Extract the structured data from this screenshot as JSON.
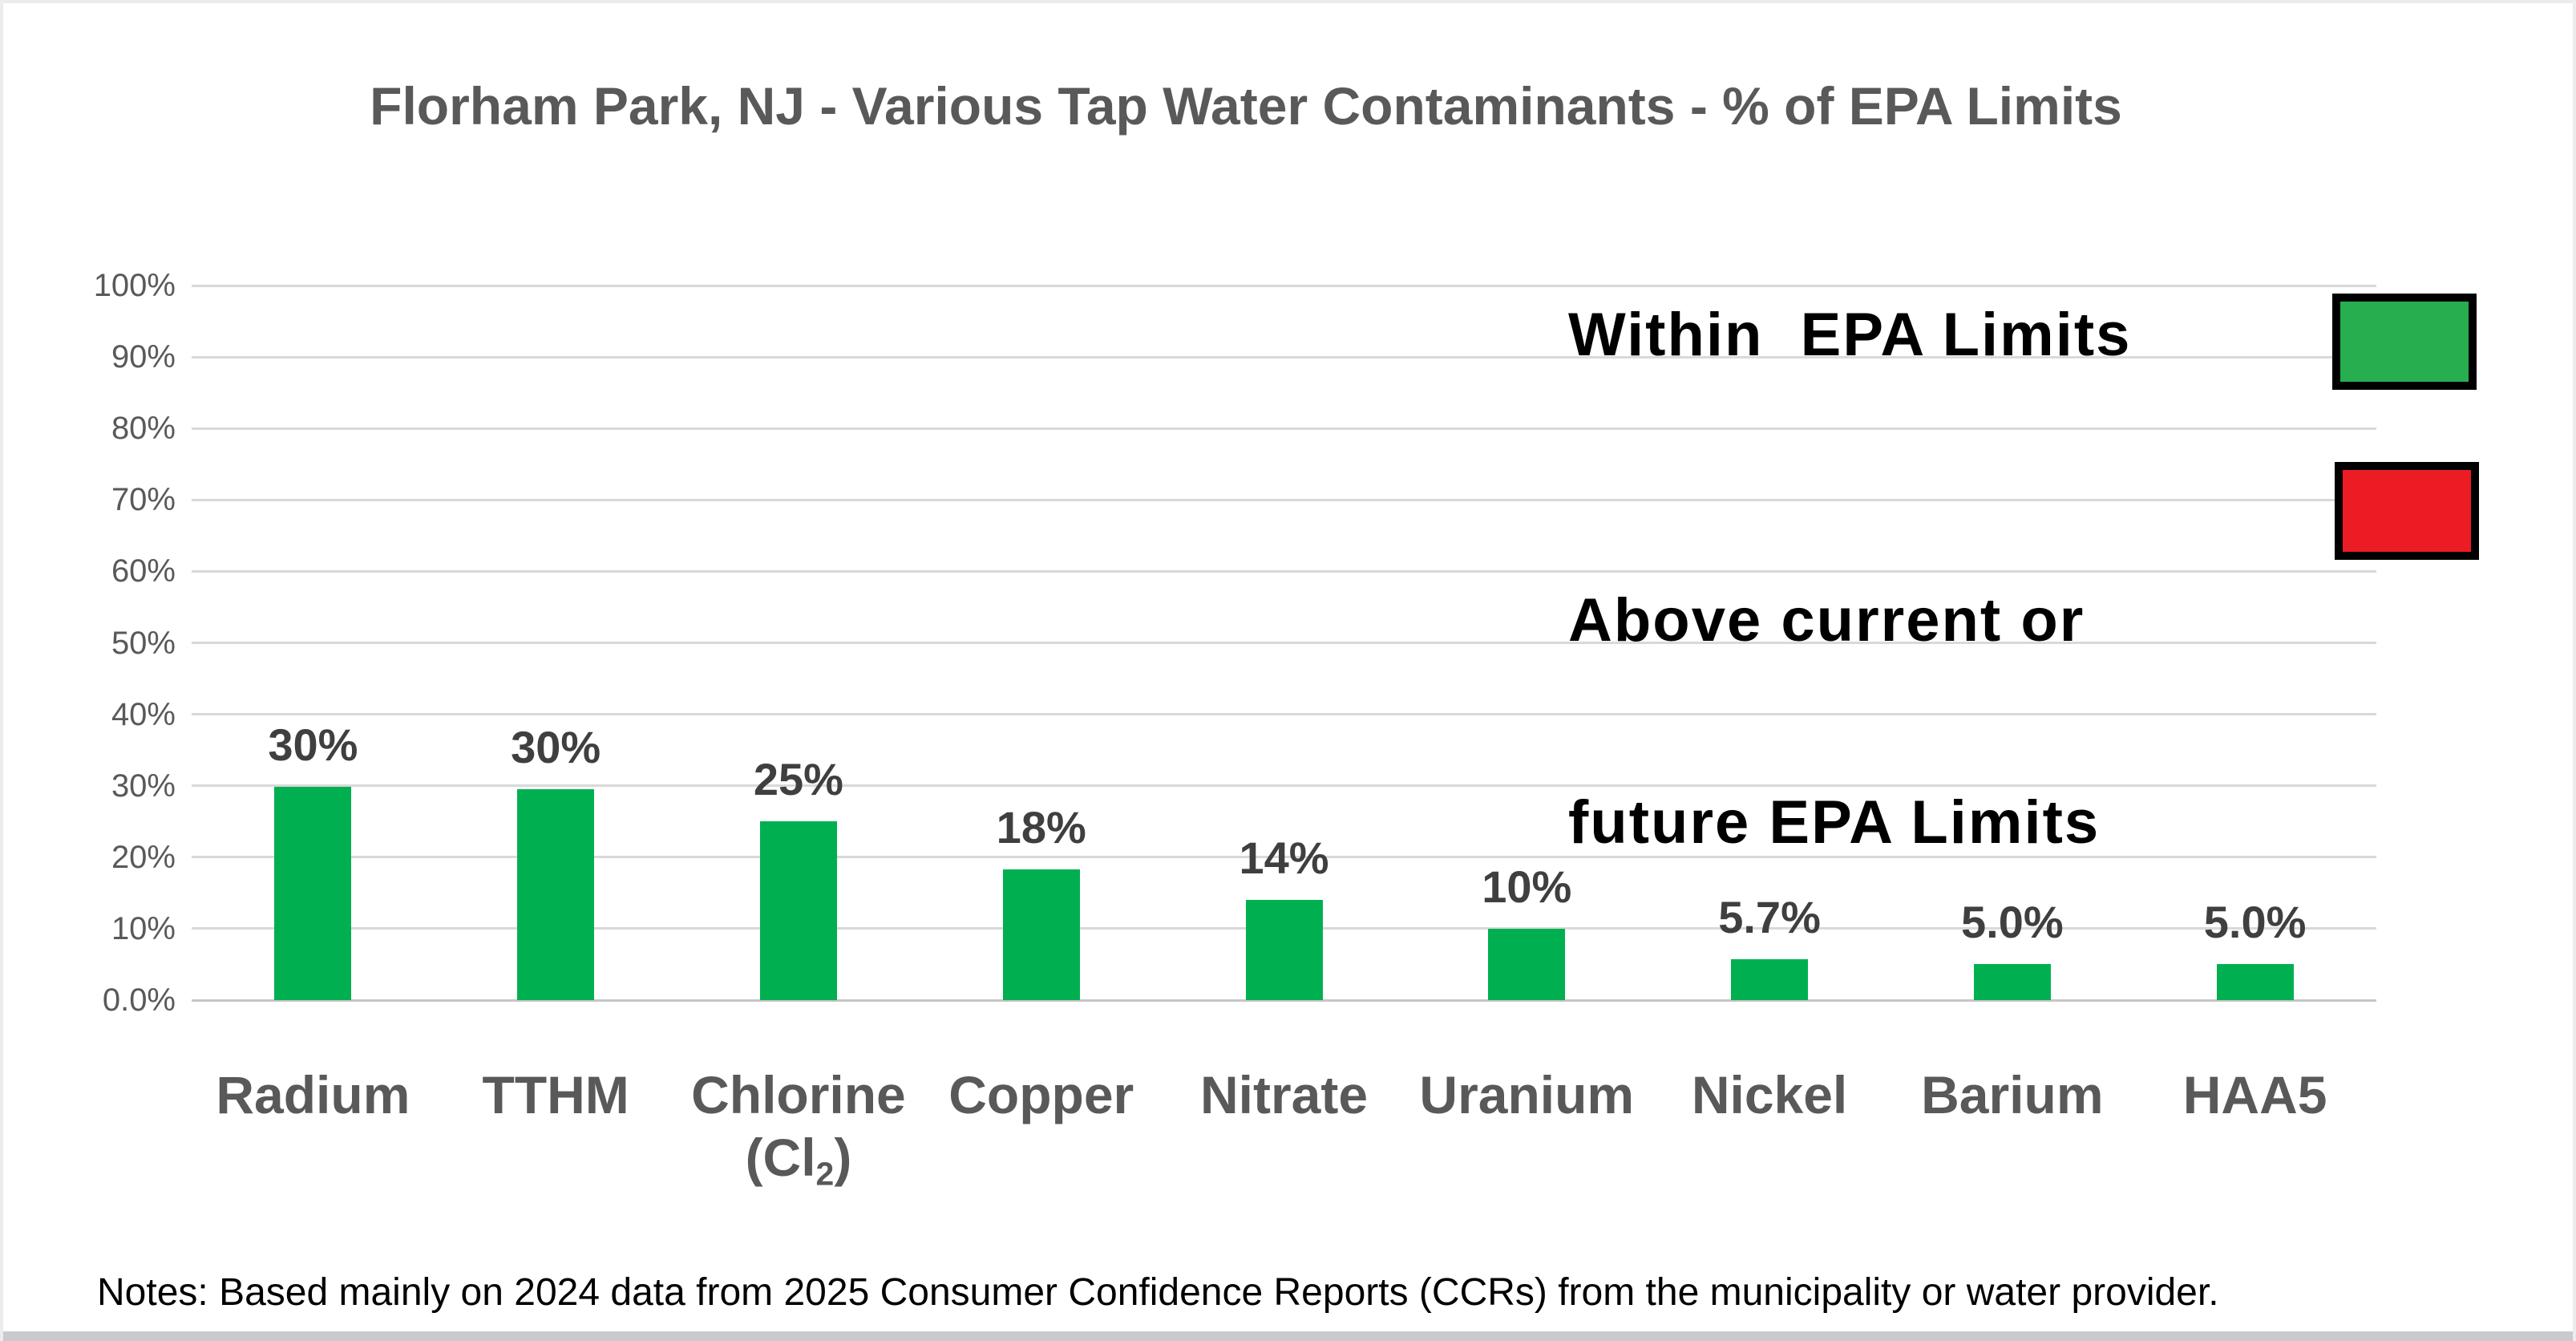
{
  "page": {
    "notes": "Notes: Based mainly on 2024 data from 2025 Consumer Confidence Reports (CCRs) from the municipality or water provider.",
    "background_color": "#FFFFFF",
    "border_color": "#ECECEC",
    "bottom_strip_color": "#C9CACC"
  },
  "legend": {
    "within_label": "Within  EPA Limits",
    "within_color": "#27AE4F",
    "above_label_line1": "Above current or",
    "above_label_line2": "future EPA Limits",
    "above_color": "#EC1C24",
    "swatch_border_color": "#000000"
  },
  "chart_data": {
    "type": "bar",
    "title": "Florham Park, NJ - Various Tap Water Contaminants - % of EPA Limits",
    "title_color": "#595959",
    "categories": [
      "Radium",
      "TTHM",
      "Chlorine (Cl₂)",
      "Copper",
      "Nitrate",
      "Uranium",
      "Nickel",
      "Barium",
      "HAA5"
    ],
    "category_labels": [
      {
        "line1": "Radium"
      },
      {
        "line1": "TTHM"
      },
      {
        "line1": "Chlorine",
        "line2_pre": "(Cl",
        "line2_sub": "2",
        "line2_post": ")"
      },
      {
        "line1": "Copper"
      },
      {
        "line1": "Nitrate"
      },
      {
        "line1": "Uranium"
      },
      {
        "line1": "Nickel"
      },
      {
        "line1": "Barium"
      },
      {
        "line1": "HAA5"
      }
    ],
    "values": [
      30,
      30,
      25,
      18,
      14,
      10,
      5.7,
      5.0,
      5.0
    ],
    "value_labels": [
      "30%",
      "30%",
      "25%",
      "18%",
      "14%",
      "10%",
      "5.7%",
      "5.0%",
      "5.0%"
    ],
    "bar_render_heights_pct": [
      29.9,
      29.5,
      25.0,
      18.3,
      14.0,
      10.0,
      5.7,
      5.0,
      5.0
    ],
    "bar_color": "#00B050",
    "grid": "horizontal",
    "gridline_color": "#D9D9D9",
    "baseline_color": "#C6C6C6",
    "axis_text_color": "#595959",
    "value_label_color": "#3F3F3F",
    "xlabel": "",
    "ylabel": "",
    "ylim": [
      0,
      100
    ],
    "y_tick_step": 10,
    "y_ticks": [
      "100%",
      "90%",
      "80%",
      "70%",
      "60%",
      "50%",
      "40%",
      "30%",
      "20%",
      "10%",
      "0.0%"
    ],
    "legend_position": "upper right",
    "legend": [
      {
        "label": "Within EPA Limits",
        "color": "#27AE4F"
      },
      {
        "label": "Above current or future EPA Limits",
        "color": "#EC1C24"
      }
    ]
  }
}
